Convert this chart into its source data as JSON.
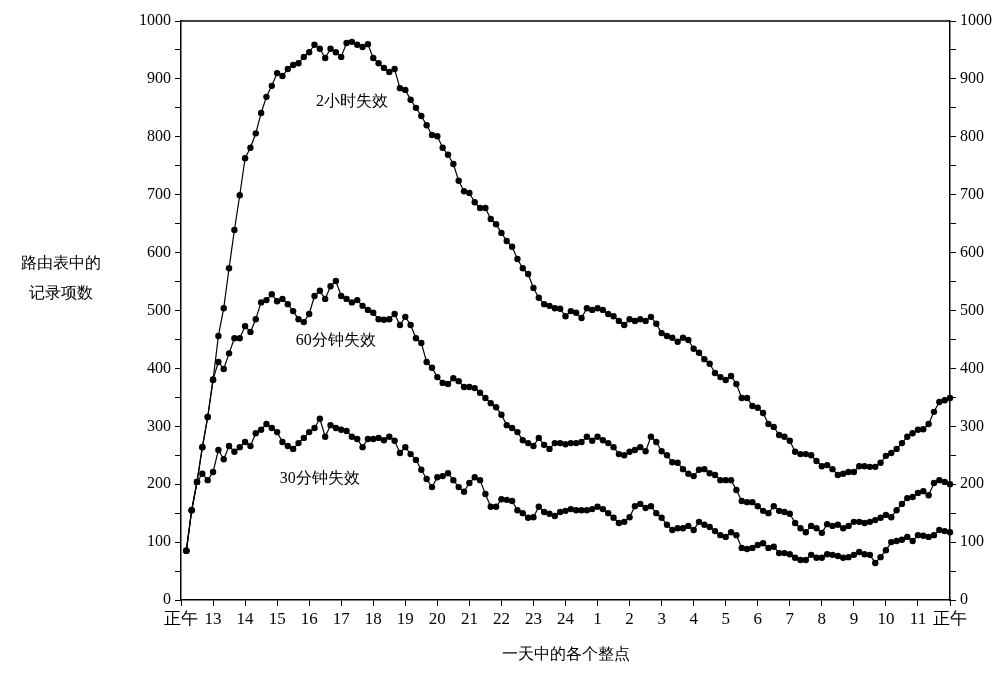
{
  "chart_data": {
    "type": "line",
    "xlabel": "一天中的各个整点",
    "ylabel": "路由表中的记录项数",
    "marker": "circle",
    "line_style": "solid",
    "categories": [
      "正午",
      null,
      null,
      null,
      null,
      null,
      "13",
      null,
      null,
      null,
      null,
      null,
      "14",
      null,
      null,
      null,
      null,
      null,
      "15",
      null,
      null,
      null,
      null,
      null,
      "16",
      null,
      null,
      null,
      null,
      null,
      "17",
      null,
      null,
      null,
      null,
      null,
      "18",
      null,
      null,
      null,
      null,
      null,
      "19",
      null,
      null,
      null,
      null,
      null,
      "20",
      null,
      null,
      null,
      null,
      null,
      "21",
      null,
      null,
      null,
      null,
      null,
      "22",
      null,
      null,
      null,
      null,
      null,
      "23",
      null,
      null,
      null,
      null,
      null,
      "24",
      null,
      null,
      null,
      null,
      null,
      "1",
      null,
      null,
      null,
      null,
      null,
      "2",
      null,
      null,
      null,
      null,
      null,
      "3",
      null,
      null,
      null,
      null,
      null,
      "4",
      null,
      null,
      null,
      null,
      null,
      "5",
      null,
      null,
      null,
      null,
      null,
      "6",
      null,
      null,
      null,
      null,
      null,
      "7",
      null,
      null,
      null,
      null,
      null,
      "8",
      null,
      null,
      null,
      null,
      null,
      "9",
      null,
      null,
      null,
      null,
      null,
      "10",
      null,
      null,
      null,
      null,
      null,
      "11",
      null,
      null,
      null,
      null,
      null,
      "正午"
    ],
    "ylim": [
      0,
      1000
    ],
    "yticks": [
      0,
      {
        "value": 50,
        "label": null
      },
      100,
      {
        "value": 150,
        "label": null
      },
      200,
      {
        "value": 250,
        "label": null
      },
      300,
      {
        "value": 350,
        "label": null
      },
      400,
      {
        "value": 450,
        "label": null
      },
      500,
      {
        "value": 550,
        "label": null
      },
      600,
      {
        "value": 650,
        "label": null
      },
      700,
      {
        "value": 750,
        "label": null
      },
      800,
      {
        "value": 850,
        "label": null
      },
      900,
      {
        "value": 950,
        "label": null
      },
      1000
    ],
    "y2lim": [
      0,
      1000
    ],
    "y2ticks": [
      0,
      {
        "value": 50,
        "label": null
      },
      100,
      {
        "value": 150,
        "label": null
      },
      200,
      {
        "value": 250,
        "label": null
      },
      300,
      {
        "value": 350,
        "label": null
      },
      400,
      {
        "value": 450,
        "label": null
      },
      500,
      {
        "value": 550,
        "label": null
      },
      600,
      {
        "value": 650,
        "label": null
      },
      700,
      {
        "value": 750,
        "label": null
      },
      800,
      {
        "value": 850,
        "label": null
      },
      900,
      {
        "value": 950,
        "label": null
      },
      1000
    ],
    "series": [
      {
        "name": "2小时失效",
        "color": "#000000",
        "values": [
          null,
          85,
          155,
          204,
          264,
          316,
          380,
          456,
          504,
          573,
          639,
          699,
          763,
          781,
          806,
          841,
          869,
          888,
          910,
          905,
          917,
          924,
          927,
          938,
          946,
          959,
          952,
          936,
          952,
          946,
          938,
          962,
          964,
          959,
          955,
          960,
          936,
          927,
          919,
          912,
          917,
          884,
          881,
          864,
          850,
          836,
          820,
          803,
          801,
          781,
          769,
          753,
          724,
          706,
          703,
          687,
          677,
          677,
          658,
          649,
          634,
          620,
          610,
          589,
          573,
          563,
          539,
          522,
          511,
          508,
          504,
          503,
          490,
          499,
          496,
          487,
          504,
          501,
          504,
          501,
          494,
          490,
          482,
          475,
          485,
          482,
          485,
          482,
          489,
          477,
          461,
          456,
          453,
          446,
          453,
          449,
          434,
          427,
          416,
          408,
          392,
          385,
          380,
          387,
          373,
          349,
          349,
          335,
          332,
          323,
          304,
          299,
          285,
          282,
          275,
          256,
          252,
          252,
          250,
          240,
          231,
          233,
          226,
          216,
          218,
          221,
          221,
          231,
          231,
          230,
          230,
          237,
          249,
          254,
          261,
          271,
          282,
          288,
          294,
          295,
          304,
          325,
          342,
          345,
          349
        ]
      },
      {
        "name": "60分钟失效",
        "color": "#000000",
        "values": [
          null,
          85,
          155,
          204,
          264,
          316,
          381,
          411,
          399,
          426,
          452,
          452,
          473,
          463,
          485,
          514,
          518,
          528,
          516,
          520,
          511,
          499,
          485,
          480,
          494,
          525,
          534,
          520,
          542,
          551,
          525,
          520,
          514,
          518,
          508,
          501,
          496,
          485,
          484,
          485,
          494,
          475,
          489,
          475,
          452,
          444,
          411,
          401,
          385,
          375,
          373,
          383,
          378,
          368,
          368,
          366,
          358,
          349,
          340,
          333,
          320,
          302,
          297,
          290,
          276,
          271,
          266,
          280,
          268,
          261,
          271,
          271,
          269,
          271,
          271,
          273,
          282,
          275,
          282,
          276,
          271,
          264,
          252,
          250,
          256,
          259,
          264,
          257,
          282,
          273,
          257,
          250,
          238,
          237,
          226,
          218,
          214,
          225,
          226,
          219,
          216,
          207,
          207,
          207,
          190,
          171,
          169,
          169,
          162,
          154,
          150,
          162,
          154,
          152,
          149,
          133,
          124,
          117,
          128,
          124,
          116,
          131,
          128,
          130,
          124,
          128,
          135,
          135,
          133,
          135,
          138,
          142,
          147,
          143,
          155,
          166,
          176,
          178,
          185,
          188,
          181,
          202,
          207,
          204,
          200
        ]
      },
      {
        "name": "30分钟失效",
        "color": "#000000",
        "values": [
          null,
          85,
          155,
          204,
          218,
          207,
          221,
          259,
          243,
          266,
          256,
          264,
          273,
          266,
          288,
          294,
          304,
          297,
          290,
          273,
          266,
          261,
          271,
          280,
          290,
          297,
          313,
          282,
          302,
          297,
          294,
          292,
          282,
          278,
          264,
          278,
          278,
          280,
          276,
          282,
          275,
          254,
          264,
          252,
          242,
          225,
          209,
          195,
          212,
          214,
          219,
          207,
          195,
          187,
          202,
          212,
          207,
          183,
          161,
          161,
          174,
          173,
          171,
          155,
          150,
          142,
          143,
          161,
          152,
          149,
          145,
          152,
          154,
          157,
          155,
          155,
          155,
          157,
          161,
          157,
          150,
          142,
          133,
          135,
          143,
          162,
          166,
          159,
          162,
          150,
          142,
          130,
          121,
          124,
          124,
          128,
          121,
          135,
          130,
          126,
          119,
          112,
          109,
          117,
          112,
          90,
          88,
          90,
          95,
          98,
          90,
          92,
          81,
          81,
          79,
          73,
          69,
          69,
          78,
          73,
          73,
          79,
          78,
          76,
          73,
          74,
          78,
          83,
          79,
          78,
          64,
          74,
          86,
          100,
          102,
          104,
          109,
          102,
          112,
          111,
          109,
          112,
          121,
          119,
          117
        ]
      }
    ]
  }
}
